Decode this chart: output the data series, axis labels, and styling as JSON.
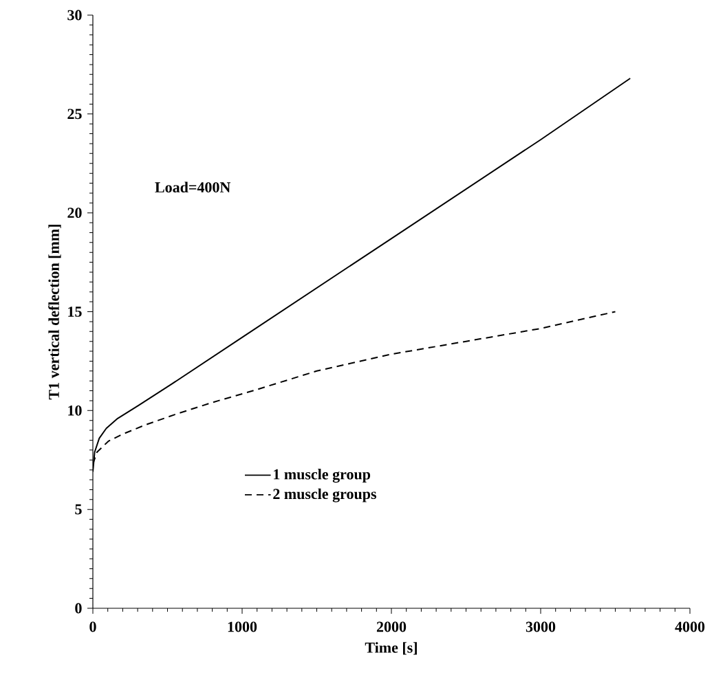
{
  "chart_data": {
    "type": "line",
    "xlabel": "Time [s]",
    "ylabel": "T1 vertical deflection [mm]",
    "annotations": [
      "Load=400N"
    ],
    "xlim": [
      0,
      4000
    ],
    "ylim": [
      0,
      30
    ],
    "xticks": [
      0,
      1000,
      2000,
      3000,
      4000
    ],
    "yticks": [
      0,
      5,
      10,
      15,
      20,
      25,
      30
    ],
    "grid": false,
    "legend": "center",
    "marker": "none",
    "series": [
      {
        "name": "1 muscle group",
        "color": "#000000",
        "line_style": "solid",
        "x": [
          0,
          12,
          43,
          90,
          166,
          304,
          520,
          1000,
          2000,
          3000,
          3600
        ],
        "values": [
          6.9,
          7.9,
          8.6,
          9.1,
          9.6,
          10.25,
          11.3,
          13.7,
          18.7,
          23.7,
          26.8
        ]
      },
      {
        "name": "2 muscle groups",
        "color": "#000000",
        "line_style": "dashed",
        "x": [
          0,
          28,
          104,
          197,
          350,
          550,
          796,
          1072,
          1500,
          2000,
          2500,
          3000,
          3500
        ],
        "values": [
          7.3,
          7.9,
          8.45,
          8.8,
          9.27,
          9.8,
          10.4,
          11.0,
          12.0,
          12.85,
          13.5,
          14.15,
          15.0
        ]
      }
    ]
  }
}
